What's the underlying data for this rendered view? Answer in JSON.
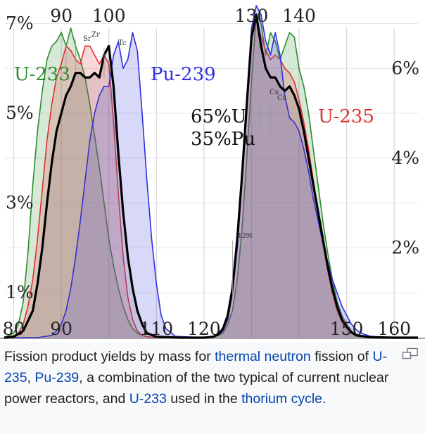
{
  "chart_data": {
    "type": "area",
    "description_of_axes": "",
    "title": "",
    "xlabel": "",
    "ylabel": "",
    "x_ticks_bottom": [
      "80",
      "90",
      "110",
      "120",
      "150",
      "160"
    ],
    "x_ticks_top": [
      "90",
      "100",
      "130",
      "140"
    ],
    "y_ticks_left": [
      "7%",
      "5%",
      "3%",
      "1%"
    ],
    "y_ticks_right": [
      "6%",
      "4%",
      "2%"
    ],
    "xlim": [
      78,
      165
    ],
    "ylim": [
      0,
      7.4
    ],
    "grid": true,
    "legend_placement": "inline labels",
    "series": [
      {
        "name": "U-233",
        "color": "#2e8b2e",
        "x": [
          78,
          80,
          81,
          82,
          83,
          84,
          85,
          86,
          87,
          88,
          89,
          90,
          91,
          92,
          93,
          94,
          95,
          96,
          97,
          98,
          99,
          100,
          101,
          102,
          103,
          104,
          105,
          106,
          107,
          108,
          110,
          115,
          118,
          120,
          121,
          122,
          123,
          124,
          125,
          126,
          127,
          128,
          129,
          130,
          131,
          132,
          133,
          134,
          135,
          136,
          137,
          138,
          139,
          140,
          141,
          142,
          143,
          144,
          145,
          146,
          147,
          148,
          149,
          150,
          151,
          152,
          155,
          160,
          165
        ],
        "y": [
          0,
          0.1,
          0.3,
          0.8,
          1.9,
          3.4,
          4.6,
          5.5,
          6.2,
          6.5,
          6.6,
          6.8,
          6.5,
          6.9,
          6.5,
          6.2,
          5.8,
          5.2,
          4.5,
          3.8,
          3.0,
          2.2,
          1.6,
          1.1,
          0.7,
          0.4,
          0.2,
          0.1,
          0.05,
          0.02,
          0,
          0,
          0,
          0,
          0.01,
          0.02,
          0.05,
          0.1,
          0.3,
          0.6,
          1.3,
          2.4,
          4.0,
          5.7,
          7.2,
          7.0,
          6.3,
          6.8,
          6.6,
          6.2,
          6.5,
          6.8,
          6.7,
          6.0,
          5.6,
          5.0,
          4.2,
          3.4,
          2.6,
          1.9,
          1.3,
          0.8,
          0.5,
          0.3,
          0.15,
          0.07,
          0.01,
          0,
          0
        ]
      },
      {
        "name": "U-235",
        "color": "#e03030",
        "x": [
          78,
          80,
          81,
          82,
          83,
          84,
          85,
          86,
          87,
          88,
          89,
          90,
          91,
          92,
          93,
          94,
          95,
          96,
          97,
          98,
          99,
          100,
          101,
          102,
          103,
          104,
          105,
          106,
          107,
          108,
          110,
          115,
          120,
          121,
          122,
          123,
          124,
          125,
          126,
          127,
          128,
          129,
          130,
          131,
          132,
          133,
          134,
          135,
          136,
          137,
          138,
          139,
          140,
          141,
          142,
          143,
          144,
          145,
          146,
          147,
          148,
          149,
          150,
          151,
          152,
          155,
          160,
          165
        ],
        "y": [
          0,
          0.04,
          0.1,
          0.3,
          0.7,
          1.3,
          2.2,
          3.3,
          4.4,
          5.2,
          5.8,
          6.1,
          6.5,
          6.4,
          6.2,
          6.1,
          6.5,
          6.5,
          6.3,
          6.1,
          6.3,
          6.1,
          4.8,
          3.2,
          1.8,
          0.9,
          0.4,
          0.15,
          0.05,
          0.02,
          0,
          0,
          0,
          0.01,
          0.03,
          0.08,
          0.2,
          0.5,
          1.1,
          2.2,
          3.6,
          5.2,
          6.6,
          7.1,
          6.7,
          6.4,
          6.2,
          6.3,
          6.2,
          6.0,
          5.9,
          5.7,
          5.3,
          4.8,
          4.2,
          3.5,
          2.8,
          2.1,
          1.5,
          1.0,
          0.6,
          0.35,
          0.2,
          0.1,
          0.04,
          0.01,
          0,
          0
        ]
      },
      {
        "name": "Pu-239",
        "color": "#2f2fe0",
        "x": [
          78,
          85,
          88,
          89,
          90,
          91,
          92,
          93,
          94,
          95,
          96,
          97,
          98,
          99,
          100,
          101,
          102,
          103,
          104,
          105,
          106,
          107,
          108,
          109,
          110,
          111,
          112,
          114,
          120,
          123,
          124,
          125,
          126,
          127,
          128,
          129,
          130,
          131,
          132,
          133,
          134,
          135,
          136,
          137,
          138,
          139,
          140,
          141,
          142,
          143,
          144,
          145,
          146,
          147,
          148,
          149,
          150,
          151,
          152,
          153,
          155,
          160,
          165
        ],
        "y": [
          0,
          0,
          0.05,
          0.15,
          0.3,
          0.6,
          1.1,
          1.8,
          2.6,
          3.5,
          4.4,
          5.0,
          5.4,
          5.6,
          5.6,
          6.3,
          6.6,
          6.0,
          6.2,
          6.8,
          6.4,
          5.0,
          3.5,
          2.2,
          1.2,
          0.5,
          0.2,
          0.03,
          0,
          0.05,
          0.15,
          0.4,
          1.0,
          2.0,
          3.5,
          5.3,
          6.9,
          7.4,
          7.2,
          6.6,
          6.3,
          6.8,
          6.3,
          5.4,
          4.9,
          4.8,
          4.6,
          4.2,
          3.7,
          3.1,
          2.6,
          2.1,
          1.7,
          1.3,
          1.0,
          0.7,
          0.5,
          0.3,
          0.18,
          0.1,
          0.03,
          0,
          0
        ]
      },
      {
        "name": "65%U 35%Pu",
        "color": "#000000",
        "x": [
          78,
          80,
          82,
          84,
          85,
          86,
          87,
          88,
          89,
          90,
          91,
          92,
          93,
          94,
          95,
          96,
          97,
          98,
          99,
          100,
          101,
          102,
          103,
          104,
          105,
          106,
          107,
          108,
          110,
          115,
          120,
          122,
          123,
          124,
          125,
          126,
          127,
          128,
          129,
          130,
          131,
          132,
          133,
          134,
          135,
          136,
          137,
          138,
          139,
          140,
          141,
          142,
          143,
          144,
          145,
          146,
          147,
          148,
          149,
          150,
          151,
          152,
          155,
          160,
          165
        ],
        "y": [
          0,
          0.02,
          0.15,
          0.6,
          1.2,
          2.0,
          3.0,
          3.9,
          4.6,
          5.0,
          5.4,
          5.6,
          5.9,
          5.9,
          5.8,
          5.8,
          5.9,
          5.8,
          6.3,
          6.5,
          5.6,
          4.1,
          2.8,
          1.8,
          1.1,
          0.6,
          0.3,
          0.1,
          0.02,
          0,
          0,
          0.02,
          0.07,
          0.2,
          0.5,
          1.1,
          2.2,
          3.6,
          5.2,
          6.7,
          7.2,
          6.5,
          6.0,
          5.8,
          5.8,
          5.6,
          5.5,
          5.6,
          5.4,
          5.1,
          4.6,
          4.0,
          3.4,
          2.8,
          2.2,
          1.6,
          1.1,
          0.7,
          0.4,
          0.25,
          0.12,
          0.05,
          0.01,
          0,
          0
        ]
      }
    ],
    "labels": {
      "u233": "U-233",
      "pu239": "Pu-239",
      "u235": "U-235",
      "mix_line1": "65%U",
      "mix_line2": "35%Pu"
    },
    "element_annotations": {
      "sr": "Sr",
      "zr": "Zr",
      "tc": "Tc",
      "cs1": "Cs",
      "cs2": "Cs",
      "i129": "129I"
    }
  },
  "caption": {
    "t1": "Fission product yields by mass for ",
    "link1": "thermal neutron",
    "t2": " fission of ",
    "link2": "U-235",
    "t3": ", ",
    "link3": "Pu-239",
    "t4": ", a combination of the two typical of current nuclear power reactors, and ",
    "link4": "U-233",
    "t5": " used in the ",
    "link5": "thorium cycle",
    "t6": "."
  },
  "icons": {
    "enlarge": "enlarge-icon"
  },
  "colors": {
    "link": "#0645ad",
    "text": "#202122",
    "background": "#f8f9fa"
  }
}
